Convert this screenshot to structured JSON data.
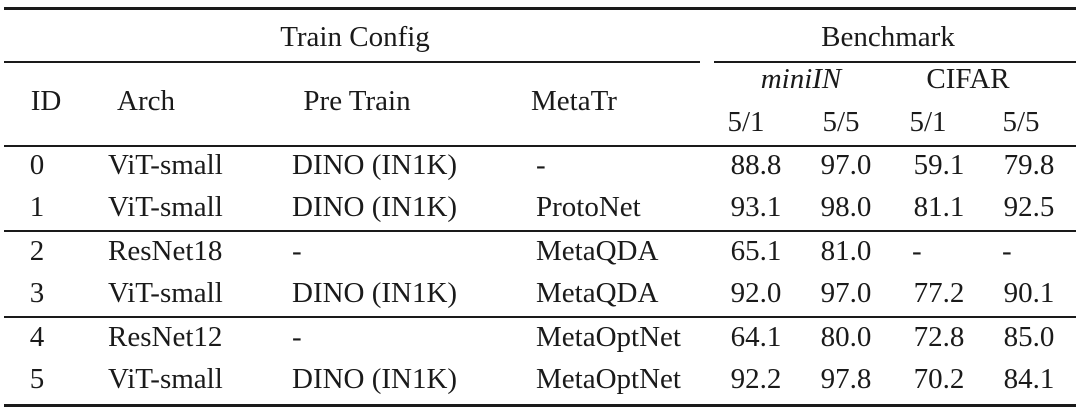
{
  "header": {
    "group_train": "Train Config",
    "group_bench": "Benchmark",
    "col_id": "ID",
    "col_arch": "Arch",
    "col_pretrain": "Pre Train",
    "col_metatr": "MetaTr",
    "dataset_mini": "miniIN",
    "dataset_cifar": "CIFAR",
    "shot_mini_1": "5/1",
    "shot_mini_5": "5/5",
    "shot_cifar_1": "5/1",
    "shot_cifar_5": "5/5"
  },
  "rows": [
    {
      "id": "0",
      "arch": "ViT-small",
      "pretrain": "DINO (IN1K)",
      "metatr": "-",
      "mini_51": "88.8",
      "mini_55": "97.0",
      "cifar_51": "59.1",
      "cifar_55": "79.8"
    },
    {
      "id": "1",
      "arch": "ViT-small",
      "pretrain": "DINO (IN1K)",
      "metatr": "ProtoNet",
      "mini_51": "93.1",
      "mini_55": "98.0",
      "cifar_51": "81.1",
      "cifar_55": "92.5"
    },
    {
      "id": "2",
      "arch": "ResNet18",
      "pretrain": "-",
      "metatr": "MetaQDA",
      "mini_51": "65.1",
      "mini_55": "81.0",
      "cifar_51": "-",
      "cifar_55": "-"
    },
    {
      "id": "3",
      "arch": "ViT-small",
      "pretrain": "DINO (IN1K)",
      "metatr": "MetaQDA",
      "mini_51": "92.0",
      "mini_55": "97.0",
      "cifar_51": "77.2",
      "cifar_55": "90.1"
    },
    {
      "id": "4",
      "arch": "ResNet12",
      "pretrain": "-",
      "metatr": "MetaOptNet",
      "mini_51": "64.1",
      "mini_55": "80.0",
      "cifar_51": "72.8",
      "cifar_55": "85.0"
    },
    {
      "id": "5",
      "arch": "ViT-small",
      "pretrain": "DINO (IN1K)",
      "metatr": "MetaOptNet",
      "mini_51": "92.2",
      "mini_55": "97.8",
      "cifar_51": "70.2",
      "cifar_55": "84.1"
    }
  ]
}
